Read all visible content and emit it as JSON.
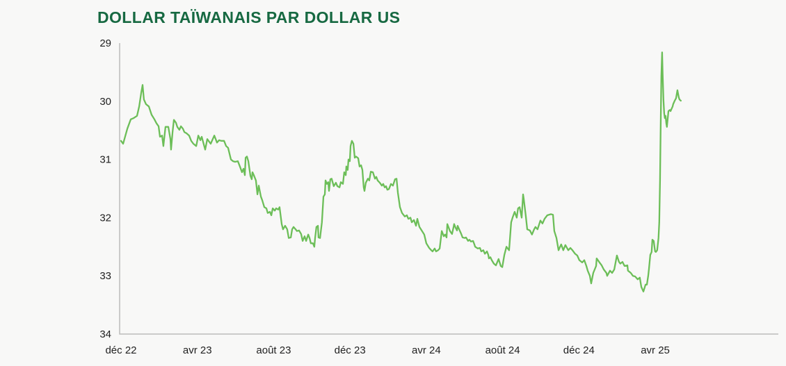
{
  "title": "DOLLAR TAÏWANAIS PAR DOLLAR US",
  "colors": {
    "title": "#176942",
    "line": "#6cbe58",
    "axis": "#bcbcbc",
    "tick_text": "#1f1f1f",
    "background": "#f8f8f7"
  },
  "chart_data": {
    "type": "line",
    "title": "DOLLAR TAÏWANAIS PAR DOLLAR US",
    "series_name": "Dollar taïwanais par dollar US",
    "y_axis_inverted": true,
    "ylim": [
      29,
      34
    ],
    "y_ticks": [
      29,
      30,
      31,
      32,
      33,
      34
    ],
    "x_ticks": [
      {
        "label": "déc 22",
        "t": 0
      },
      {
        "label": "avr 23",
        "t": 4
      },
      {
        "label": "août 23",
        "t": 8
      },
      {
        "label": "déc 23",
        "t": 12
      },
      {
        "label": "avr 24",
        "t": 16
      },
      {
        "label": "août 24",
        "t": 20
      },
      {
        "label": "déc 24",
        "t": 24
      },
      {
        "label": "avr 25",
        "t": 28
      }
    ],
    "t_unit": "months since déc 2022",
    "t_range": [
      0,
      29.4
    ],
    "grid": false,
    "legend": "none",
    "points": [
      [
        0,
        30.68
      ],
      [
        0.11,
        30.73
      ],
      [
        0.33,
        30.47
      ],
      [
        0.51,
        30.31
      ],
      [
        0.66,
        30.29
      ],
      [
        0.84,
        30.25
      ],
      [
        0.95,
        30.09
      ],
      [
        1.06,
        29.85
      ],
      [
        1.13,
        29.72
      ],
      [
        1.2,
        29.97
      ],
      [
        1.31,
        30.05
      ],
      [
        1.46,
        30.09
      ],
      [
        1.6,
        30.23
      ],
      [
        1.75,
        30.31
      ],
      [
        1.86,
        30.38
      ],
      [
        1.97,
        30.43
      ],
      [
        2.04,
        30.61
      ],
      [
        2.15,
        30.59
      ],
      [
        2.22,
        30.77
      ],
      [
        2.33,
        30.44
      ],
      [
        2.48,
        30.44
      ],
      [
        2.59,
        30.65
      ],
      [
        2.62,
        30.83
      ],
      [
        2.7,
        30.53
      ],
      [
        2.77,
        30.32
      ],
      [
        2.88,
        30.37
      ],
      [
        2.95,
        30.44
      ],
      [
        3.06,
        30.49
      ],
      [
        3.14,
        30.43
      ],
      [
        3.24,
        30.47
      ],
      [
        3.32,
        30.53
      ],
      [
        3.43,
        30.55
      ],
      [
        3.57,
        30.59
      ],
      [
        3.68,
        30.68
      ],
      [
        3.79,
        30.73
      ],
      [
        3.94,
        30.77
      ],
      [
        4.05,
        30.59
      ],
      [
        4.16,
        30.67
      ],
      [
        4.23,
        30.61
      ],
      [
        4.41,
        30.83
      ],
      [
        4.52,
        30.65
      ],
      [
        4.7,
        30.73
      ],
      [
        4.89,
        30.59
      ],
      [
        5.03,
        30.71
      ],
      [
        5.14,
        30.67
      ],
      [
        5.25,
        30.68
      ],
      [
        5.4,
        30.68
      ],
      [
        5.51,
        30.77
      ],
      [
        5.61,
        30.8
      ],
      [
        5.76,
        31.0
      ],
      [
        5.87,
        31.03
      ],
      [
        5.98,
        31.04
      ],
      [
        6.12,
        31.03
      ],
      [
        6.23,
        31.12
      ],
      [
        6.34,
        31.22
      ],
      [
        6.42,
        31.16
      ],
      [
        6.49,
        31.27
      ],
      [
        6.53,
        30.97
      ],
      [
        6.6,
        30.95
      ],
      [
        6.67,
        31.03
      ],
      [
        6.78,
        31.28
      ],
      [
        6.85,
        31.34
      ],
      [
        6.89,
        31.22
      ],
      [
        6.96,
        31.27
      ],
      [
        7.07,
        31.36
      ],
      [
        7.15,
        31.6
      ],
      [
        7.22,
        31.45
      ],
      [
        7.33,
        31.64
      ],
      [
        7.4,
        31.7
      ],
      [
        7.51,
        31.82
      ],
      [
        7.62,
        31.84
      ],
      [
        7.69,
        31.92
      ],
      [
        7.8,
        31.9
      ],
      [
        7.88,
        31.96
      ],
      [
        7.95,
        31.84
      ],
      [
        8.06,
        31.88
      ],
      [
        8.13,
        31.84
      ],
      [
        8.24,
        31.86
      ],
      [
        8.31,
        31.82
      ],
      [
        8.42,
        32.11
      ],
      [
        8.49,
        32.2
      ],
      [
        8.6,
        32.14
      ],
      [
        8.71,
        32.2
      ],
      [
        8.79,
        32.35
      ],
      [
        8.9,
        32.34
      ],
      [
        8.97,
        32.2
      ],
      [
        9.04,
        32.16
      ],
      [
        9.15,
        32.2
      ],
      [
        9.22,
        32.23
      ],
      [
        9.33,
        32.22
      ],
      [
        9.44,
        32.28
      ],
      [
        9.52,
        32.4
      ],
      [
        9.62,
        32.32
      ],
      [
        9.7,
        32.4
      ],
      [
        9.81,
        32.29
      ],
      [
        9.88,
        32.35
      ],
      [
        9.95,
        32.44
      ],
      [
        10.06,
        32.44
      ],
      [
        10.13,
        32.5
      ],
      [
        10.17,
        32.35
      ],
      [
        10.24,
        32.16
      ],
      [
        10.32,
        32.14
      ],
      [
        10.35,
        32.34
      ],
      [
        10.43,
        32.35
      ],
      [
        10.53,
        32.08
      ],
      [
        10.61,
        31.64
      ],
      [
        10.68,
        31.6
      ],
      [
        10.72,
        31.36
      ],
      [
        10.79,
        31.42
      ],
      [
        10.86,
        31.39
      ],
      [
        10.9,
        31.54
      ],
      [
        10.97,
        31.34
      ],
      [
        11.04,
        31.33
      ],
      [
        11.15,
        31.46
      ],
      [
        11.26,
        31.4
      ],
      [
        11.34,
        31.46
      ],
      [
        11.45,
        31.48
      ],
      [
        11.52,
        31.39
      ],
      [
        11.63,
        31.42
      ],
      [
        11.7,
        31.22
      ],
      [
        11.78,
        31.27
      ],
      [
        11.81,
        31.12
      ],
      [
        11.88,
        31.18
      ],
      [
        11.92,
        31.0
      ],
      [
        11.99,
        31.03
      ],
      [
        12.03,
        30.77
      ],
      [
        12.1,
        30.68
      ],
      [
        12.18,
        30.73
      ],
      [
        12.25,
        30.97
      ],
      [
        12.32,
        30.95
      ],
      [
        12.43,
        30.98
      ],
      [
        12.5,
        31.12
      ],
      [
        12.58,
        31.1
      ],
      [
        12.65,
        31.18
      ],
      [
        12.72,
        31.48
      ],
      [
        12.76,
        31.54
      ],
      [
        12.83,
        31.4
      ],
      [
        12.94,
        31.33
      ],
      [
        13.01,
        31.36
      ],
      [
        13.09,
        31.21
      ],
      [
        13.2,
        31.22
      ],
      [
        13.31,
        31.33
      ],
      [
        13.38,
        31.3
      ],
      [
        13.45,
        31.36
      ],
      [
        13.56,
        31.4
      ],
      [
        13.67,
        31.45
      ],
      [
        13.74,
        31.42
      ],
      [
        13.82,
        31.48
      ],
      [
        13.89,
        31.46
      ],
      [
        13.96,
        31.52
      ],
      [
        14.04,
        31.51
      ],
      [
        14.15,
        31.42
      ],
      [
        14.25,
        31.45
      ],
      [
        14.36,
        31.34
      ],
      [
        14.44,
        31.33
      ],
      [
        14.51,
        31.57
      ],
      [
        14.62,
        31.82
      ],
      [
        14.73,
        31.92
      ],
      [
        14.87,
        31.98
      ],
      [
        14.98,
        31.96
      ],
      [
        15.06,
        32.02
      ],
      [
        15.17,
        32.0
      ],
      [
        15.24,
        32.08
      ],
      [
        15.35,
        32.04
      ],
      [
        15.46,
        32.14
      ],
      [
        15.53,
        32.02
      ],
      [
        15.64,
        32.16
      ],
      [
        15.78,
        32.23
      ],
      [
        15.89,
        32.29
      ],
      [
        16.0,
        32.44
      ],
      [
        16.15,
        32.52
      ],
      [
        16.26,
        32.56
      ],
      [
        16.33,
        32.58
      ],
      [
        16.44,
        32.53
      ],
      [
        16.51,
        32.58
      ],
      [
        16.62,
        32.56
      ],
      [
        16.7,
        32.53
      ],
      [
        16.81,
        32.23
      ],
      [
        16.92,
        32.32
      ],
      [
        16.99,
        32.29
      ],
      [
        17.06,
        32.34
      ],
      [
        17.1,
        32.11
      ],
      [
        17.17,
        32.17
      ],
      [
        17.24,
        32.23
      ],
      [
        17.35,
        32.28
      ],
      [
        17.43,
        32.16
      ],
      [
        17.46,
        32.11
      ],
      [
        17.53,
        32.17
      ],
      [
        17.61,
        32.22
      ],
      [
        17.64,
        32.14
      ],
      [
        17.72,
        32.2
      ],
      [
        17.83,
        32.28
      ],
      [
        17.9,
        32.34
      ],
      [
        18.01,
        32.35
      ],
      [
        18.08,
        32.34
      ],
      [
        18.19,
        32.4
      ],
      [
        18.26,
        32.38
      ],
      [
        18.34,
        32.41
      ],
      [
        18.45,
        32.4
      ],
      [
        18.52,
        32.46
      ],
      [
        18.56,
        32.5
      ],
      [
        18.7,
        32.53
      ],
      [
        18.81,
        32.52
      ],
      [
        18.88,
        32.58
      ],
      [
        18.99,
        32.56
      ],
      [
        19.07,
        32.62
      ],
      [
        19.18,
        32.58
      ],
      [
        19.25,
        32.64
      ],
      [
        19.28,
        32.7
      ],
      [
        19.36,
        32.68
      ],
      [
        19.43,
        32.73
      ],
      [
        19.54,
        32.79
      ],
      [
        19.65,
        32.82
      ],
      [
        19.79,
        32.71
      ],
      [
        19.9,
        32.83
      ],
      [
        19.98,
        32.85
      ],
      [
        20.09,
        32.64
      ],
      [
        20.2,
        32.5
      ],
      [
        20.34,
        32.56
      ],
      [
        20.45,
        32.08
      ],
      [
        20.52,
        32.0
      ],
      [
        20.63,
        31.9
      ],
      [
        20.74,
        32.0
      ],
      [
        20.81,
        31.84
      ],
      [
        20.89,
        31.82
      ],
      [
        21.0,
        32.0
      ],
      [
        21.07,
        31.6
      ],
      [
        21.11,
        31.68
      ],
      [
        21.21,
        31.96
      ],
      [
        21.29,
        32.2
      ],
      [
        21.43,
        32.22
      ],
      [
        21.54,
        32.29
      ],
      [
        21.65,
        32.2
      ],
      [
        21.72,
        32.16
      ],
      [
        21.83,
        32.2
      ],
      [
        21.98,
        32.05
      ],
      [
        22.09,
        32.1
      ],
      [
        22.2,
        32.02
      ],
      [
        22.34,
        31.96
      ],
      [
        22.53,
        31.94
      ],
      [
        22.64,
        31.95
      ],
      [
        22.71,
        32.23
      ],
      [
        22.82,
        32.35
      ],
      [
        22.93,
        32.56
      ],
      [
        23.07,
        32.46
      ],
      [
        23.18,
        32.56
      ],
      [
        23.29,
        32.47
      ],
      [
        23.44,
        32.56
      ],
      [
        23.55,
        32.52
      ],
      [
        23.66,
        32.56
      ],
      [
        23.8,
        32.62
      ],
      [
        23.91,
        32.65
      ],
      [
        24.02,
        32.73
      ],
      [
        24.17,
        32.77
      ],
      [
        24.28,
        32.73
      ],
      [
        24.39,
        32.83
      ],
      [
        24.46,
        32.91
      ],
      [
        24.57,
        33.0
      ],
      [
        24.64,
        33.13
      ],
      [
        24.75,
        32.95
      ],
      [
        24.9,
        32.83
      ],
      [
        24.93,
        32.7
      ],
      [
        25.08,
        32.77
      ],
      [
        25.19,
        32.82
      ],
      [
        25.3,
        32.89
      ],
      [
        25.44,
        32.95
      ],
      [
        25.48,
        33.0
      ],
      [
        25.63,
        32.91
      ],
      [
        25.74,
        32.95
      ],
      [
        25.85,
        32.89
      ],
      [
        25.99,
        32.65
      ],
      [
        26.1,
        32.76
      ],
      [
        26.17,
        32.79
      ],
      [
        26.28,
        32.76
      ],
      [
        26.39,
        32.83
      ],
      [
        26.54,
        32.82
      ],
      [
        26.57,
        32.91
      ],
      [
        26.72,
        32.95
      ],
      [
        26.83,
        33.0
      ],
      [
        26.94,
        33.01
      ],
      [
        27.08,
        33.06
      ],
      [
        27.19,
        33.03
      ],
      [
        27.27,
        33.19
      ],
      [
        27.38,
        33.27
      ],
      [
        27.49,
        33.15
      ],
      [
        27.56,
        33.15
      ],
      [
        27.63,
        33.0
      ],
      [
        27.67,
        32.88
      ],
      [
        27.74,
        32.64
      ],
      [
        27.81,
        32.59
      ],
      [
        27.85,
        32.38
      ],
      [
        27.92,
        32.4
      ],
      [
        27.99,
        32.58
      ],
      [
        28.03,
        32.59
      ],
      [
        28.1,
        32.56
      ],
      [
        28.17,
        32.35
      ],
      [
        28.21,
        32.08
      ],
      [
        28.25,
        31.36
      ],
      [
        28.28,
        30.56
      ],
      [
        28.32,
        29.57
      ],
      [
        28.36,
        29.16
      ],
      [
        28.39,
        29.54
      ],
      [
        28.43,
        29.97
      ],
      [
        28.47,
        30.21
      ],
      [
        28.5,
        30.29
      ],
      [
        28.54,
        30.25
      ],
      [
        28.58,
        30.38
      ],
      [
        28.61,
        30.44
      ],
      [
        28.69,
        30.17
      ],
      [
        28.76,
        30.15
      ],
      [
        28.8,
        30.17
      ],
      [
        28.91,
        30.09
      ],
      [
        28.94,
        30.05
      ],
      [
        29.02,
        29.99
      ],
      [
        29.09,
        29.95
      ],
      [
        29.16,
        29.81
      ],
      [
        29.23,
        29.93
      ],
      [
        29.27,
        29.97
      ],
      [
        29.34,
        29.99
      ]
    ]
  }
}
